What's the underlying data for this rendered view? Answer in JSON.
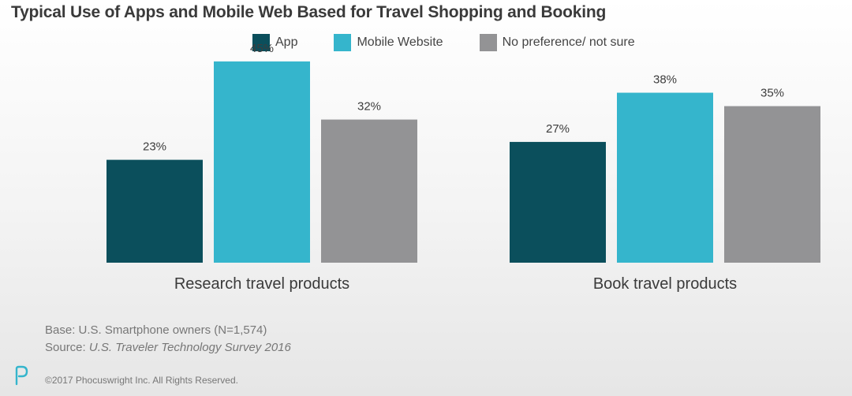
{
  "chart_data": {
    "type": "bar",
    "title": "Typical Use of Apps and Mobile Web Based for Travel Shopping and Booking",
    "categories": [
      "Research travel products",
      "Book travel products"
    ],
    "series": [
      {
        "name": "App",
        "values": [
          23,
          27
        ],
        "color": "#0b4f5c"
      },
      {
        "name": "Mobile Website",
        "values": [
          45,
          38
        ],
        "color": "#35b5cc"
      },
      {
        "name": "No preference/ not sure",
        "values": [
          32,
          35
        ],
        "color": "#939395"
      }
    ],
    "value_suffix": "%",
    "ylim": [
      0,
      50
    ],
    "xlabel": "",
    "ylabel": "",
    "grid": false,
    "legend_position": "top"
  },
  "notes": {
    "base": "Base: U.S. Smartphone owners (N=1,574)",
    "source_prefix": "Source: ",
    "source_title": "U.S. Traveler Technology Survey 2016"
  },
  "footer": {
    "copyright": "©2017 Phocuswright Inc. All Rights Reserved.",
    "logo_icon": "phocuswright-p-logo-icon",
    "logo_color": "#35b5cc"
  }
}
